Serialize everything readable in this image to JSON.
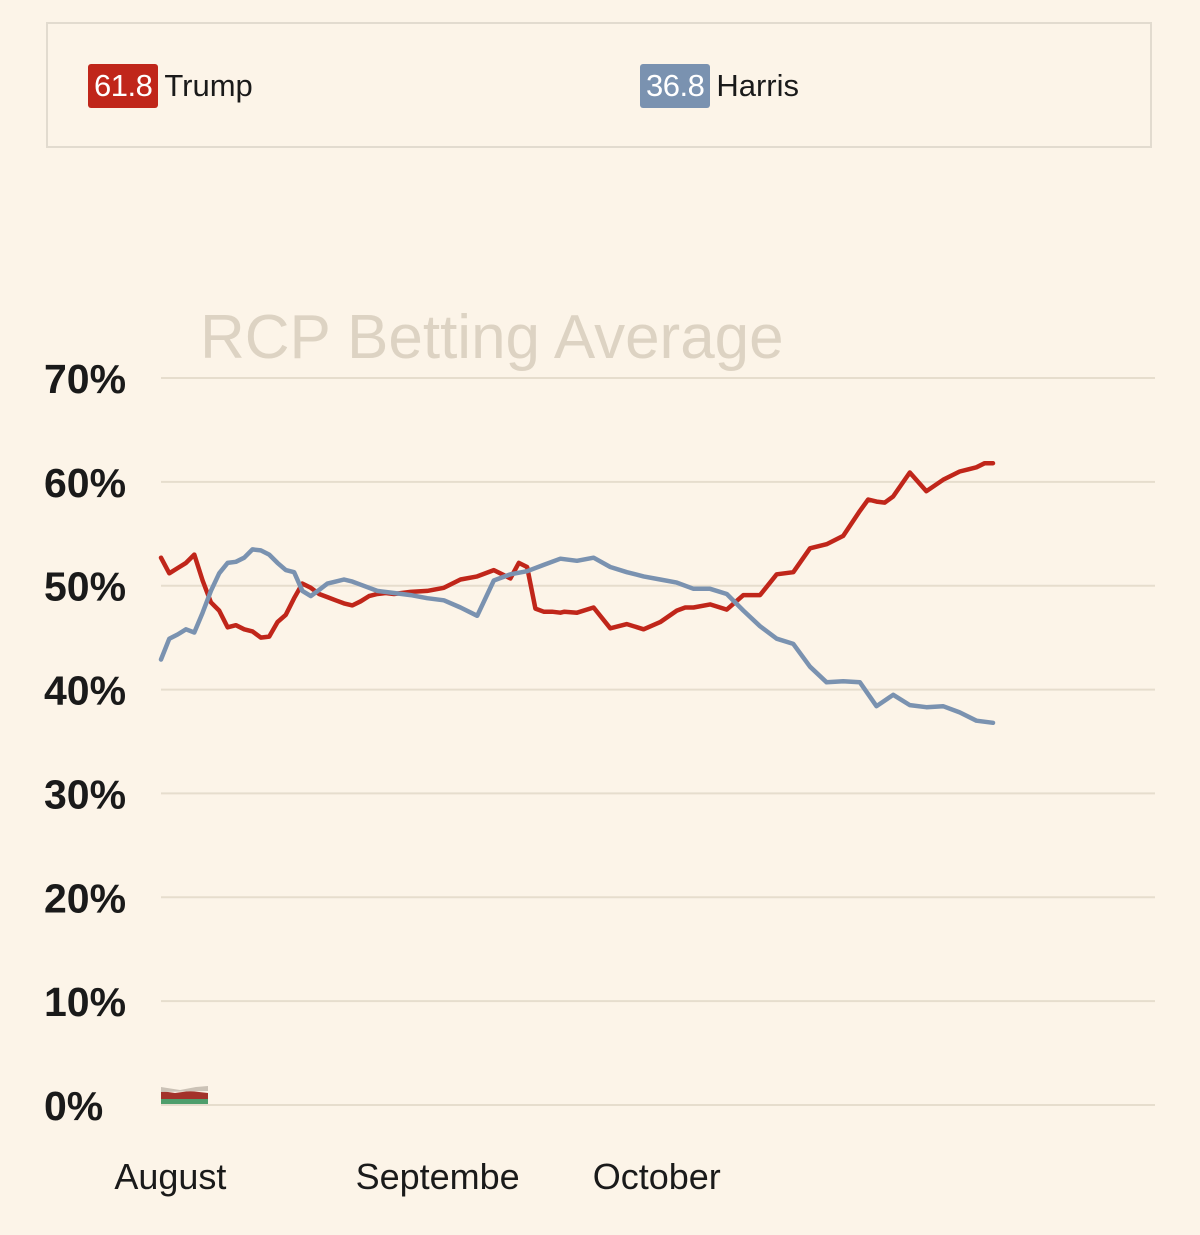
{
  "legend": {
    "trump": {
      "value": "61.8",
      "name": "Trump",
      "color": "#c0261a"
    },
    "harris": {
      "value": "36.8",
      "name": "Harris",
      "color": "#7a92b0"
    }
  },
  "chart_data": {
    "type": "line",
    "title": "RCP Betting Average",
    "xlabel": "",
    "ylabel": "",
    "ylim": [
      0,
      70
    ],
    "yticks": [
      0,
      10,
      20,
      30,
      40,
      50,
      60,
      70
    ],
    "ytick_labels": [
      "0%",
      "10%",
      "20%",
      "30%",
      "40%",
      "50%",
      "60%",
      "70%"
    ],
    "xlim": [
      0,
      100
    ],
    "xticks": [
      {
        "x": 1,
        "label": "August"
      },
      {
        "x": 30,
        "label": "Septembe"
      },
      {
        "x": 58.5,
        "label": "October"
      }
    ],
    "series": [
      {
        "name": "Trump",
        "color": "#c0261a",
        "x": [
          0,
          1,
          2,
          3,
          4,
          5,
          6,
          7,
          8,
          9,
          10,
          11,
          12,
          13,
          14,
          15,
          16,
          17,
          18,
          19,
          20,
          21,
          22,
          23,
          24,
          25,
          26,
          27,
          28,
          30,
          32,
          34,
          36,
          38,
          40,
          42,
          43,
          44,
          45,
          46,
          47,
          48,
          48.5,
          50,
          52,
          54,
          56,
          58,
          60,
          62,
          63,
          64,
          66,
          68,
          70,
          72,
          74,
          76,
          78,
          80,
          82,
          84,
          85,
          86,
          87,
          88,
          90,
          92,
          94,
          96,
          97,
          98,
          99,
          100
        ],
        "values": [
          52.7,
          51.2,
          51.7,
          52.2,
          53.0,
          50.5,
          48.4,
          47.6,
          46.0,
          46.2,
          45.8,
          45.6,
          45.0,
          45.1,
          46.5,
          47.2,
          48.8,
          50.2,
          49.8,
          49.2,
          48.9,
          48.6,
          48.3,
          48.1,
          48.5,
          49.0,
          49.2,
          49.3,
          49.2,
          49.4,
          49.5,
          49.8,
          50.6,
          50.9,
          51.5,
          50.7,
          52.2,
          51.8,
          47.8,
          47.5,
          47.5,
          47.4,
          47.5,
          47.4,
          47.9,
          45.9,
          46.3,
          45.8,
          46.5,
          47.6,
          47.9,
          47.9,
          48.2,
          47.7,
          49.1,
          49.1,
          51.1,
          51.3,
          53.6,
          54.0,
          54.8,
          57.2,
          58.3,
          58.1,
          58.0,
          58.6,
          60.9,
          59.1,
          60.2,
          61.0,
          61.2,
          61.4,
          61.8,
          61.8
        ]
      },
      {
        "name": "Harris",
        "color": "#7a92b0",
        "x": [
          0,
          1,
          2,
          3,
          4,
          5,
          6,
          7,
          8,
          9,
          10,
          11,
          12,
          13,
          14,
          15,
          16,
          17,
          18,
          19,
          20,
          21,
          22,
          23,
          24,
          26,
          28,
          30,
          32,
          34,
          36,
          38,
          40,
          42,
          44,
          46,
          48,
          50,
          52,
          54,
          56,
          58,
          60,
          62,
          64,
          66,
          68,
          70,
          72,
          74,
          76,
          78,
          80,
          82,
          84,
          86,
          88,
          90,
          92,
          94,
          96,
          98,
          100
        ],
        "values": [
          42.9,
          44.9,
          45.3,
          45.8,
          45.5,
          47.4,
          49.5,
          51.2,
          52.2,
          52.3,
          52.7,
          53.5,
          53.4,
          53.0,
          52.2,
          51.5,
          51.3,
          49.5,
          49.0,
          49.6,
          50.2,
          50.4,
          50.6,
          50.4,
          50.1,
          49.5,
          49.3,
          49.1,
          48.8,
          48.6,
          47.9,
          47.1,
          50.5,
          51.1,
          51.4,
          52.0,
          52.6,
          52.4,
          52.7,
          51.8,
          51.3,
          50.9,
          50.6,
          50.3,
          49.7,
          49.7,
          49.2,
          47.6,
          46.1,
          44.9,
          44.4,
          42.2,
          40.7,
          40.8,
          40.7,
          38.4,
          39.5,
          38.5,
          38.3,
          38.4,
          37.8,
          37.0,
          36.8
        ]
      }
    ]
  }
}
